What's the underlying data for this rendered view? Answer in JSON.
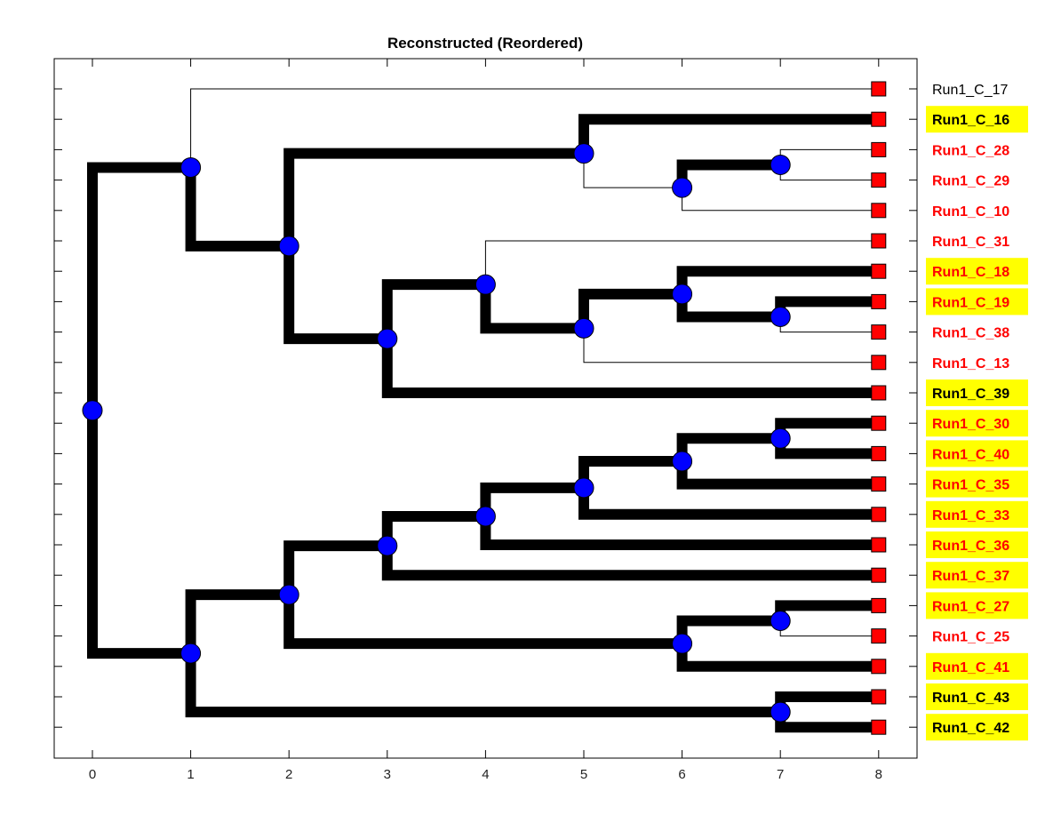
{
  "chart_data": {
    "type": "dendrogram",
    "title": "Reconstructed (Reordered)",
    "xlim": [
      -0.4,
      8.4
    ],
    "x_ticks": [
      "0",
      "1",
      "2",
      "3",
      "4",
      "5",
      "6",
      "7",
      "8"
    ],
    "leaves": [
      {
        "id": "L0",
        "label": "Run1_C_17",
        "label_color": "#000000",
        "bold": false,
        "highlight": false
      },
      {
        "id": "L1",
        "label": "Run1_C_16",
        "label_color": "#000000",
        "bold": true,
        "highlight": true
      },
      {
        "id": "L2",
        "label": "Run1_C_28",
        "label_color": "#ff0000",
        "bold": true,
        "highlight": false
      },
      {
        "id": "L3",
        "label": "Run1_C_29",
        "label_color": "#ff0000",
        "bold": true,
        "highlight": false
      },
      {
        "id": "L4",
        "label": "Run1_C_10",
        "label_color": "#ff0000",
        "bold": true,
        "highlight": false
      },
      {
        "id": "L5",
        "label": "Run1_C_31",
        "label_color": "#ff0000",
        "bold": true,
        "highlight": false
      },
      {
        "id": "L6",
        "label": "Run1_C_18",
        "label_color": "#ff0000",
        "bold": true,
        "highlight": true
      },
      {
        "id": "L7",
        "label": "Run1_C_19",
        "label_color": "#ff0000",
        "bold": true,
        "highlight": true
      },
      {
        "id": "L8",
        "label": "Run1_C_38",
        "label_color": "#ff0000",
        "bold": true,
        "highlight": false
      },
      {
        "id": "L9",
        "label": "Run1_C_13",
        "label_color": "#ff0000",
        "bold": true,
        "highlight": false
      },
      {
        "id": "L10",
        "label": "Run1_C_39",
        "label_color": "#000000",
        "bold": true,
        "highlight": true
      },
      {
        "id": "L11",
        "label": "Run1_C_30",
        "label_color": "#ff0000",
        "bold": true,
        "highlight": true
      },
      {
        "id": "L12",
        "label": "Run1_C_40",
        "label_color": "#ff0000",
        "bold": true,
        "highlight": true
      },
      {
        "id": "L13",
        "label": "Run1_C_35",
        "label_color": "#ff0000",
        "bold": true,
        "highlight": true
      },
      {
        "id": "L14",
        "label": "Run1_C_33",
        "label_color": "#ff0000",
        "bold": true,
        "highlight": true
      },
      {
        "id": "L15",
        "label": "Run1_C_36",
        "label_color": "#ff0000",
        "bold": true,
        "highlight": true
      },
      {
        "id": "L16",
        "label": "Run1_C_37",
        "label_color": "#ff0000",
        "bold": true,
        "highlight": true
      },
      {
        "id": "L17",
        "label": "Run1_C_27",
        "label_color": "#ff0000",
        "bold": true,
        "highlight": true
      },
      {
        "id": "L18",
        "label": "Run1_C_25",
        "label_color": "#ff0000",
        "bold": true,
        "highlight": false
      },
      {
        "id": "L19",
        "label": "Run1_C_41",
        "label_color": "#ff0000",
        "bold": true,
        "highlight": true
      },
      {
        "id": "L20",
        "label": "Run1_C_43",
        "label_color": "#000000",
        "bold": true,
        "highlight": true
      },
      {
        "id": "L21",
        "label": "Run1_C_42",
        "label_color": "#000000",
        "bold": true,
        "highlight": true
      }
    ],
    "internal_nodes": [
      {
        "id": "n_root",
        "depth": 0,
        "children": [
          "n_a",
          "n_b"
        ]
      },
      {
        "id": "n_a",
        "depth": 1,
        "children": [
          "L0",
          "n_a2"
        ]
      },
      {
        "id": "n_a2",
        "depth": 2,
        "children": [
          "n_a5",
          "n_a3"
        ]
      },
      {
        "id": "n_a5",
        "depth": 5,
        "children": [
          "L1",
          "n_a6"
        ]
      },
      {
        "id": "n_a6",
        "depth": 6,
        "children": [
          "n_a7",
          "L4"
        ]
      },
      {
        "id": "n_a7",
        "depth": 7,
        "children": [
          "L2",
          "L3"
        ]
      },
      {
        "id": "n_a3",
        "depth": 3,
        "children": [
          "n_a4",
          "L10"
        ]
      },
      {
        "id": "n_a4",
        "depth": 4,
        "children": [
          "L5",
          "n_a45"
        ]
      },
      {
        "id": "n_a45",
        "depth": 5,
        "children": [
          "n_a46",
          "L9"
        ]
      },
      {
        "id": "n_a46",
        "depth": 6,
        "children": [
          "L6",
          "n_a47"
        ]
      },
      {
        "id": "n_a47",
        "depth": 7,
        "children": [
          "L7",
          "L8"
        ]
      },
      {
        "id": "n_b",
        "depth": 1,
        "children": [
          "n_b2",
          "n_b7"
        ]
      },
      {
        "id": "n_b2",
        "depth": 2,
        "children": [
          "n_b3",
          "n_b26"
        ]
      },
      {
        "id": "n_b3",
        "depth": 3,
        "children": [
          "n_b4",
          "L16"
        ]
      },
      {
        "id": "n_b4",
        "depth": 4,
        "children": [
          "n_b5",
          "L15"
        ]
      },
      {
        "id": "n_b5",
        "depth": 5,
        "children": [
          "n_b6",
          "L14"
        ]
      },
      {
        "id": "n_b6",
        "depth": 6,
        "children": [
          "n_b67",
          "L13"
        ]
      },
      {
        "id": "n_b67",
        "depth": 7,
        "children": [
          "L11",
          "L12"
        ]
      },
      {
        "id": "n_b26",
        "depth": 6,
        "children": [
          "n_b27",
          "L19"
        ]
      },
      {
        "id": "n_b27",
        "depth": 7,
        "children": [
          "L17",
          "L18"
        ]
      },
      {
        "id": "n_b7",
        "depth": 7,
        "children": [
          "L20",
          "L21"
        ]
      }
    ],
    "thin_edges": [
      "n_a-L0",
      "n_a5-n_a6",
      "n_a6-L4",
      "n_a7-L2",
      "n_a7-L3",
      "n_a4-L5",
      "n_a45-L9",
      "n_a47-L8",
      "n_b27-L18"
    ],
    "colors": {
      "node_fill": "#0000ff",
      "leaf_fill": "#ff0000",
      "edge": "#000000",
      "highlight_bg": "#ffff00"
    }
  }
}
